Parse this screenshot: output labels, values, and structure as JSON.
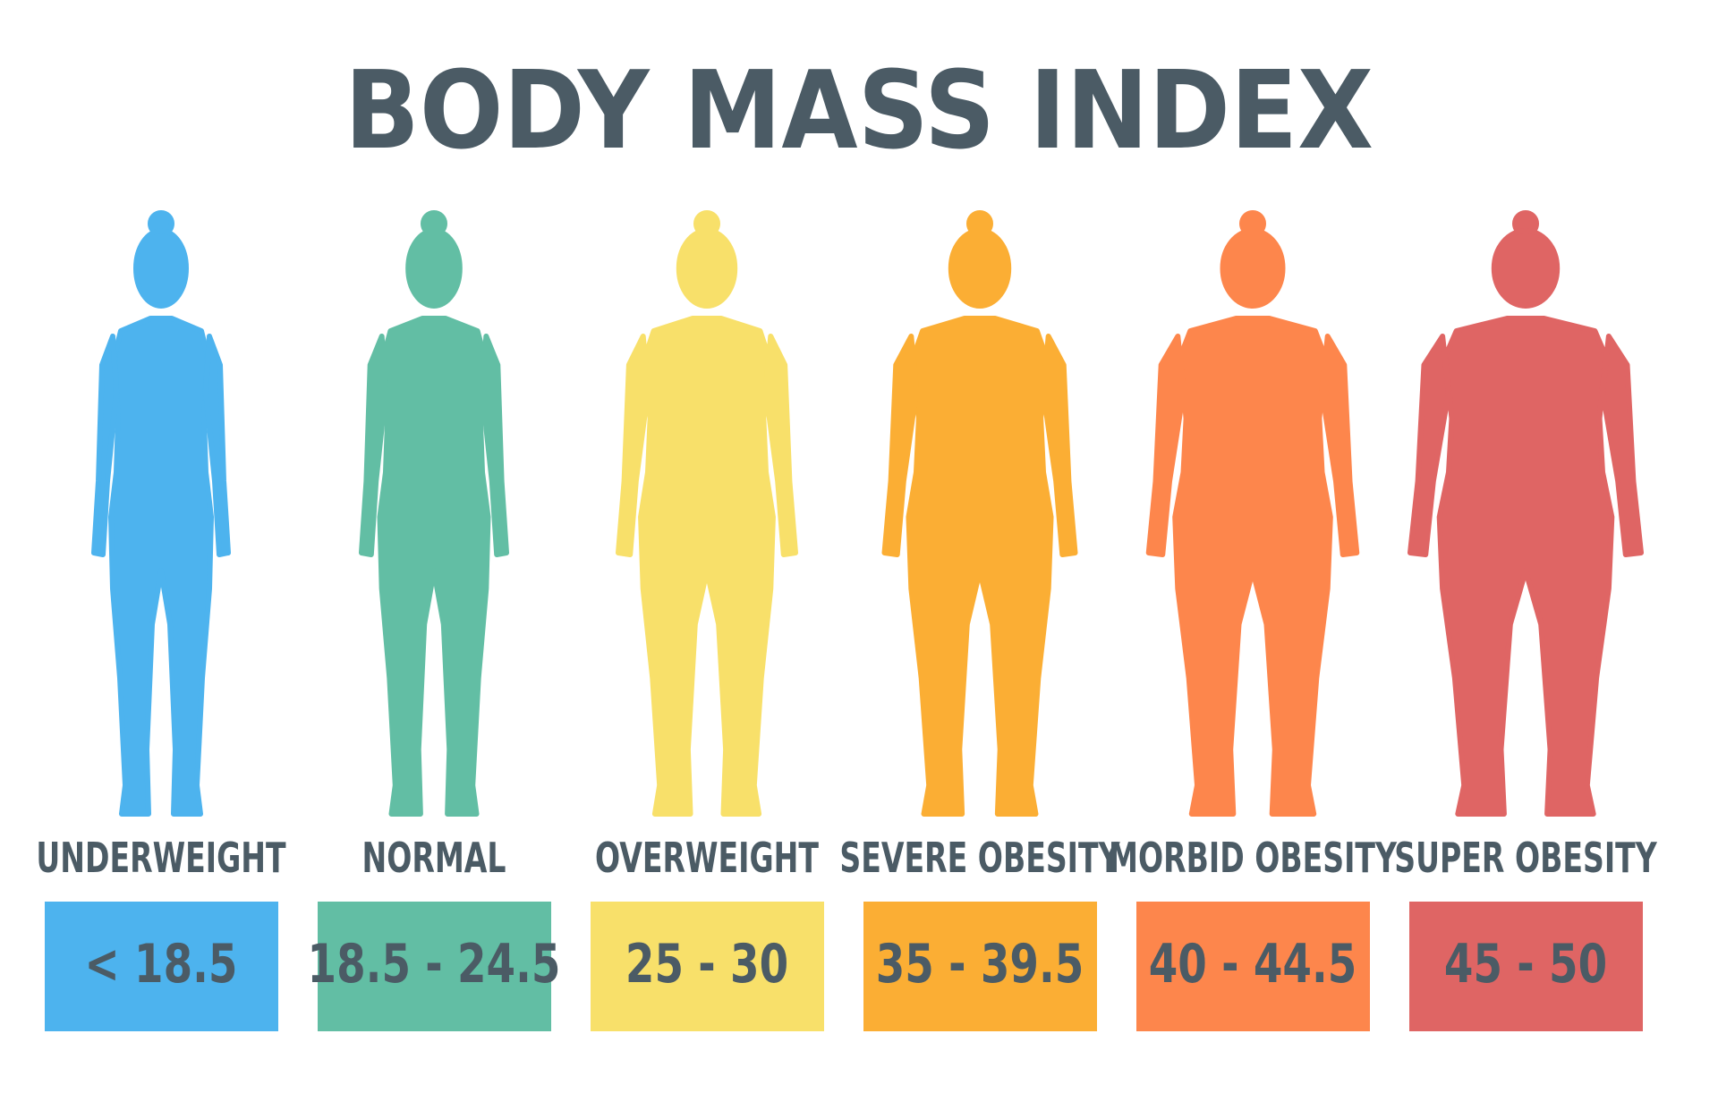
{
  "title": "BODY MASS INDEX",
  "categories": [
    {
      "label": "UNDERWEIGHT",
      "range": "< 18.5",
      "color": "#4db3ee"
    },
    {
      "label": "NORMAL",
      "range": "18.5 - 24.5",
      "color": "#62bea4"
    },
    {
      "label": "OVERWEIGHT",
      "range": "25 - 30",
      "color": "#f8e06a"
    },
    {
      "label": "SEVERE OBESITY",
      "range": "35 - 39.5",
      "color": "#fbae34"
    },
    {
      "label": "MORBID OBESITY",
      "range": "40 - 44.5",
      "color": "#fd864c"
    },
    {
      "label": "SUPER OBESITY",
      "range": "45 - 50",
      "color": "#df6564"
    }
  ]
}
